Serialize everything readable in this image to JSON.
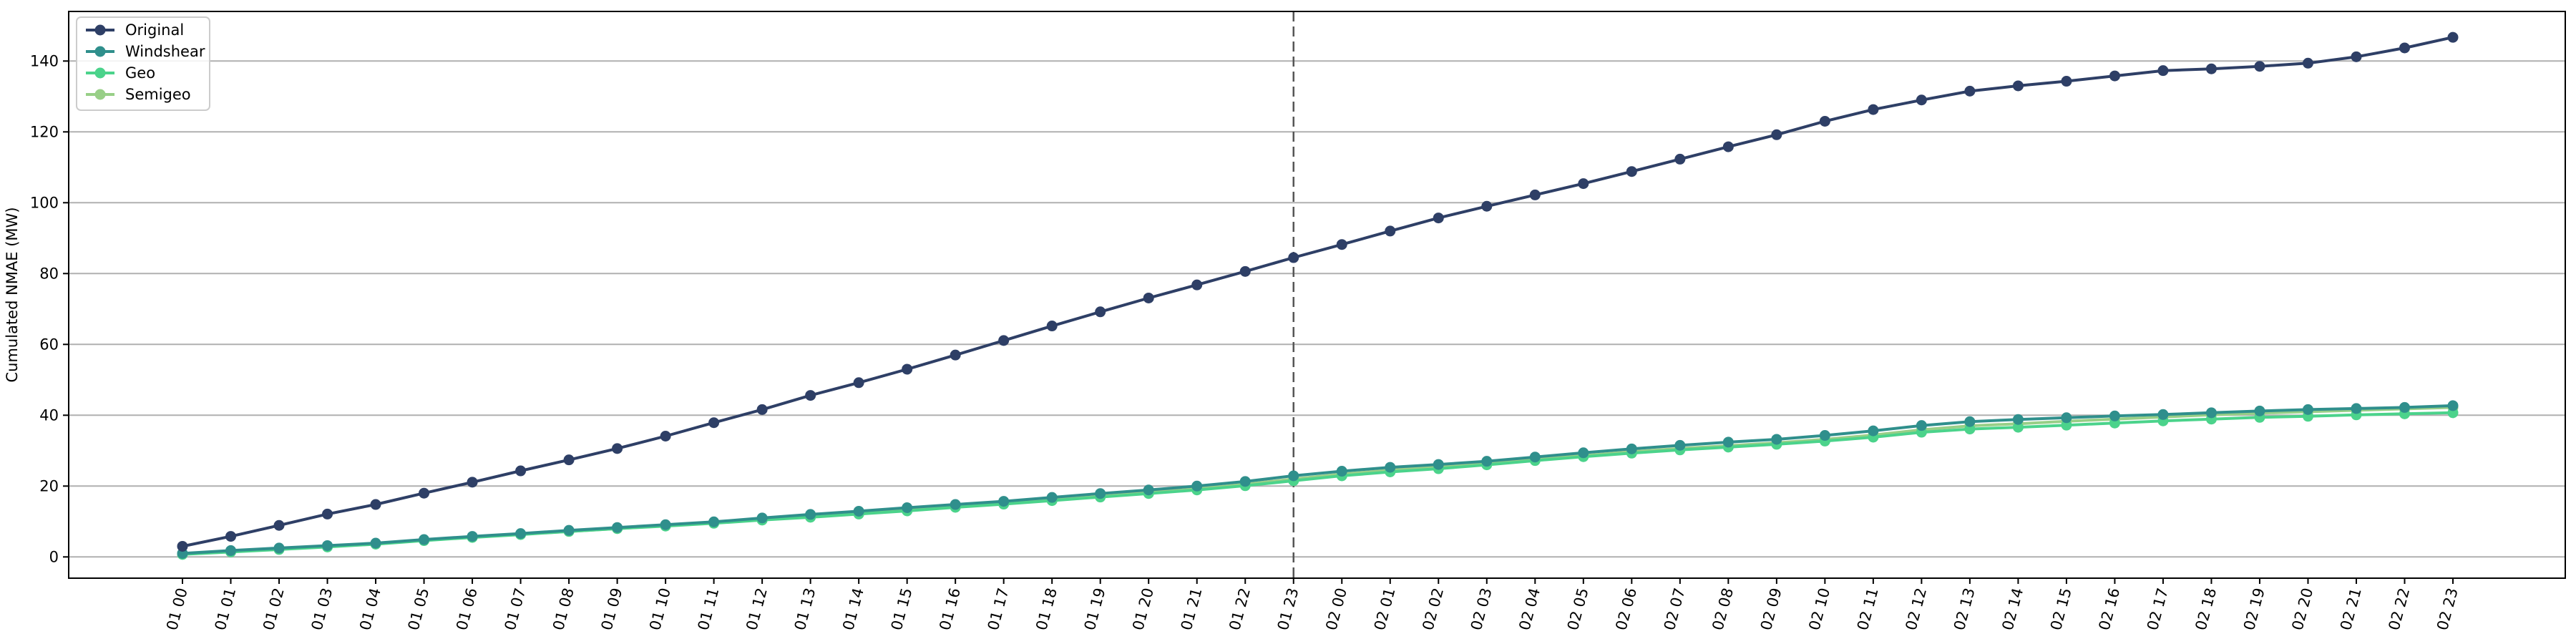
{
  "chart_data": {
    "type": "line",
    "ylabel": "Cumulated NMAE (MW)",
    "ylim": [
      -6,
      154
    ],
    "yticks": [
      0,
      20,
      40,
      60,
      80,
      100,
      120,
      140
    ],
    "grid": "horizontal",
    "legend_position": "top-left",
    "vline_at": "01 23",
    "x": [
      "01 00",
      "01 01",
      "01 02",
      "01 03",
      "01 04",
      "01 05",
      "01 06",
      "01 07",
      "01 08",
      "01 09",
      "01 10",
      "01 11",
      "01 12",
      "01 13",
      "01 14",
      "01 15",
      "01 16",
      "01 17",
      "01 18",
      "01 19",
      "01 20",
      "01 21",
      "01 22",
      "01 23",
      "02 00",
      "02 01",
      "02 02",
      "02 03",
      "02 04",
      "02 05",
      "02 06",
      "02 07",
      "02 08",
      "02 09",
      "02 10",
      "02 11",
      "02 12",
      "02 13",
      "02 14",
      "02 15",
      "02 16",
      "02 17",
      "02 18",
      "02 19",
      "02 20",
      "02 21",
      "02 22",
      "02 23"
    ],
    "series": [
      {
        "name": "Original",
        "color": "#2e3f66",
        "values": [
          3.0,
          5.8,
          8.9,
          12.1,
          14.8,
          18.0,
          21.1,
          24.3,
          27.4,
          30.6,
          34.1,
          37.9,
          41.6,
          45.6,
          49.2,
          53.0,
          57.0,
          61.1,
          65.2,
          69.2,
          73.1,
          76.8,
          80.6,
          84.5,
          88.2,
          92.0,
          95.7,
          99.0,
          102.2,
          105.4,
          108.8,
          112.3,
          115.8,
          119.2,
          123.0,
          126.3,
          129.0,
          131.5,
          133.0,
          134.3,
          135.8,
          137.3,
          137.8,
          138.5,
          139.4,
          141.2,
          143.7,
          146.7
        ]
      },
      {
        "name": "Windshear",
        "color": "#2f8f8c",
        "values": [
          1.0,
          1.8,
          2.5,
          3.2,
          3.9,
          4.9,
          5.8,
          6.6,
          7.5,
          8.3,
          9.1,
          9.9,
          11.0,
          12.0,
          12.9,
          13.9,
          14.8,
          15.7,
          16.8,
          17.9,
          18.9,
          20.0,
          21.3,
          22.9,
          24.2,
          25.3,
          26.1,
          27.0,
          28.2,
          29.4,
          30.5,
          31.5,
          32.4,
          33.2,
          34.3,
          35.6,
          37.1,
          38.2,
          38.8,
          39.3,
          39.8,
          40.2,
          40.7,
          41.2,
          41.6,
          41.9,
          42.2,
          42.7
        ]
      },
      {
        "name": "Geo",
        "color": "#4bd38b",
        "values": [
          0.7,
          1.4,
          2.1,
          2.8,
          3.6,
          4.6,
          5.5,
          6.3,
          7.2,
          8.0,
          8.7,
          9.5,
          10.4,
          11.2,
          12.1,
          13.0,
          14.0,
          14.9,
          15.9,
          16.9,
          17.9,
          18.9,
          20.1,
          21.5,
          22.9,
          24.0,
          24.9,
          26.0,
          27.2,
          28.3,
          29.3,
          30.2,
          31.0,
          31.8,
          32.7,
          33.8,
          35.2,
          36.1,
          36.6,
          37.2,
          37.8,
          38.4,
          38.9,
          39.4,
          39.7,
          40.1,
          40.4,
          40.7
        ]
      },
      {
        "name": "Semigeo",
        "color": "#98cf87",
        "values": [
          0.8,
          1.6,
          2.3,
          3.0,
          3.7,
          4.7,
          5.6,
          6.4,
          7.2,
          8.0,
          8.8,
          9.6,
          10.6,
          11.5,
          12.4,
          13.3,
          14.2,
          15.1,
          16.1,
          17.1,
          18.2,
          19.2,
          20.5,
          22.0,
          23.4,
          24.5,
          25.4,
          26.4,
          27.5,
          28.6,
          29.7,
          30.6,
          31.4,
          32.2,
          33.2,
          34.4,
          35.9,
          37.0,
          37.6,
          38.3,
          38.9,
          39.5,
          40.1,
          40.6,
          41.0,
          41.4,
          41.8,
          42.2
        ]
      }
    ]
  }
}
